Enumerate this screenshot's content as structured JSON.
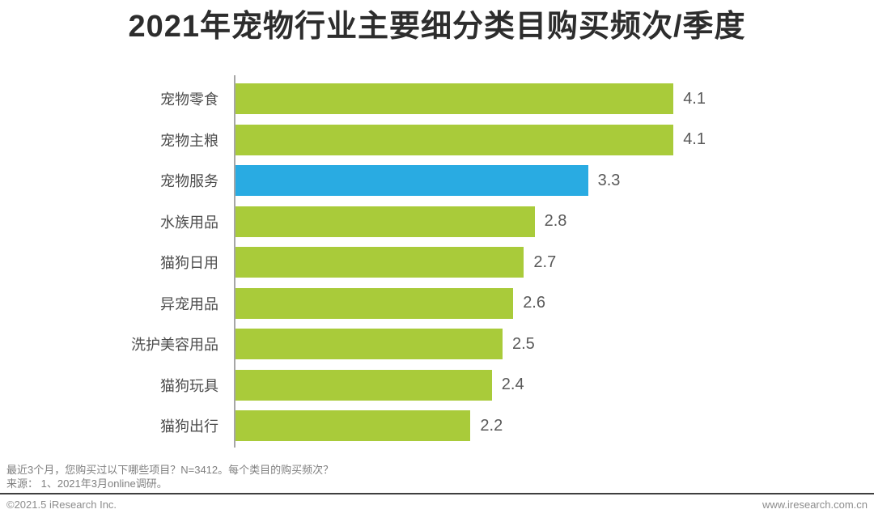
{
  "title": "2021年宠物行业主要细分类目购买频次/季度",
  "chart_data": {
    "type": "bar",
    "orientation": "horizontal",
    "title": "2021年宠物行业主要细分类目购买频次/季度",
    "categories": [
      "宠物零食",
      "宠物主粮",
      "宠物服务",
      "水族用品",
      "猫狗日用",
      "异宠用品",
      "洗护美容用品",
      "猫狗玩具",
      "猫狗出行"
    ],
    "values": [
      4.1,
      4.1,
      3.3,
      2.8,
      2.7,
      2.6,
      2.5,
      2.4,
      2.2
    ],
    "value_labels": [
      "4.1",
      "4.1",
      "3.3",
      "2.8",
      "2.7",
      "2.6",
      "2.5",
      "2.4",
      "2.2"
    ],
    "highlight_index": 2,
    "bar_color": "#a9cb3a",
    "highlight_color": "#29abe2",
    "axis_color": "#a6a6a6",
    "xlim": [
      0,
      4.5
    ],
    "xlabel": "",
    "ylabel": "",
    "grid": false,
    "legend": false
  },
  "footer": {
    "note_line1": "最近3个月，您购买过以下哪些项目？N=3412。每个类目的购买频次？",
    "note_line2": "来源：  1、2021年3月online调研。",
    "copyright": "©2021.5 iResearch Inc.",
    "website": "www.iresearch.com.cn"
  }
}
